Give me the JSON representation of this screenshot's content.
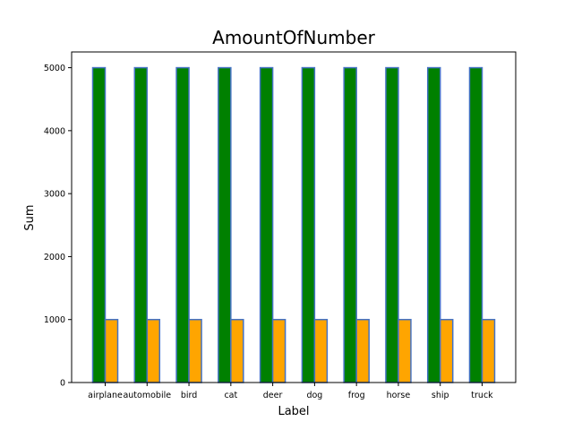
{
  "chart_data": {
    "type": "bar",
    "title": "AmountOfNumber",
    "xlabel": "Label",
    "ylabel": "Sum",
    "categories": [
      "airplane",
      "automobile",
      "bird",
      "cat",
      "deer",
      "dog",
      "frog",
      "horse",
      "ship",
      "truck"
    ],
    "series": [
      {
        "values": [
          5000,
          5000,
          5000,
          5000,
          5000,
          5000,
          5000,
          5000,
          5000,
          5000
        ],
        "color": "#008000"
      },
      {
        "values": [
          1000,
          1000,
          1000,
          1000,
          1000,
          1000,
          1000,
          1000,
          1000,
          1000
        ],
        "color": "#FFA500"
      }
    ],
    "bar_edge_color": "#4472C4",
    "ylim": [
      0,
      5250
    ],
    "yticks": [
      0,
      1000,
      2000,
      3000,
      4000,
      5000
    ],
    "grid": false,
    "legend": "none"
  }
}
